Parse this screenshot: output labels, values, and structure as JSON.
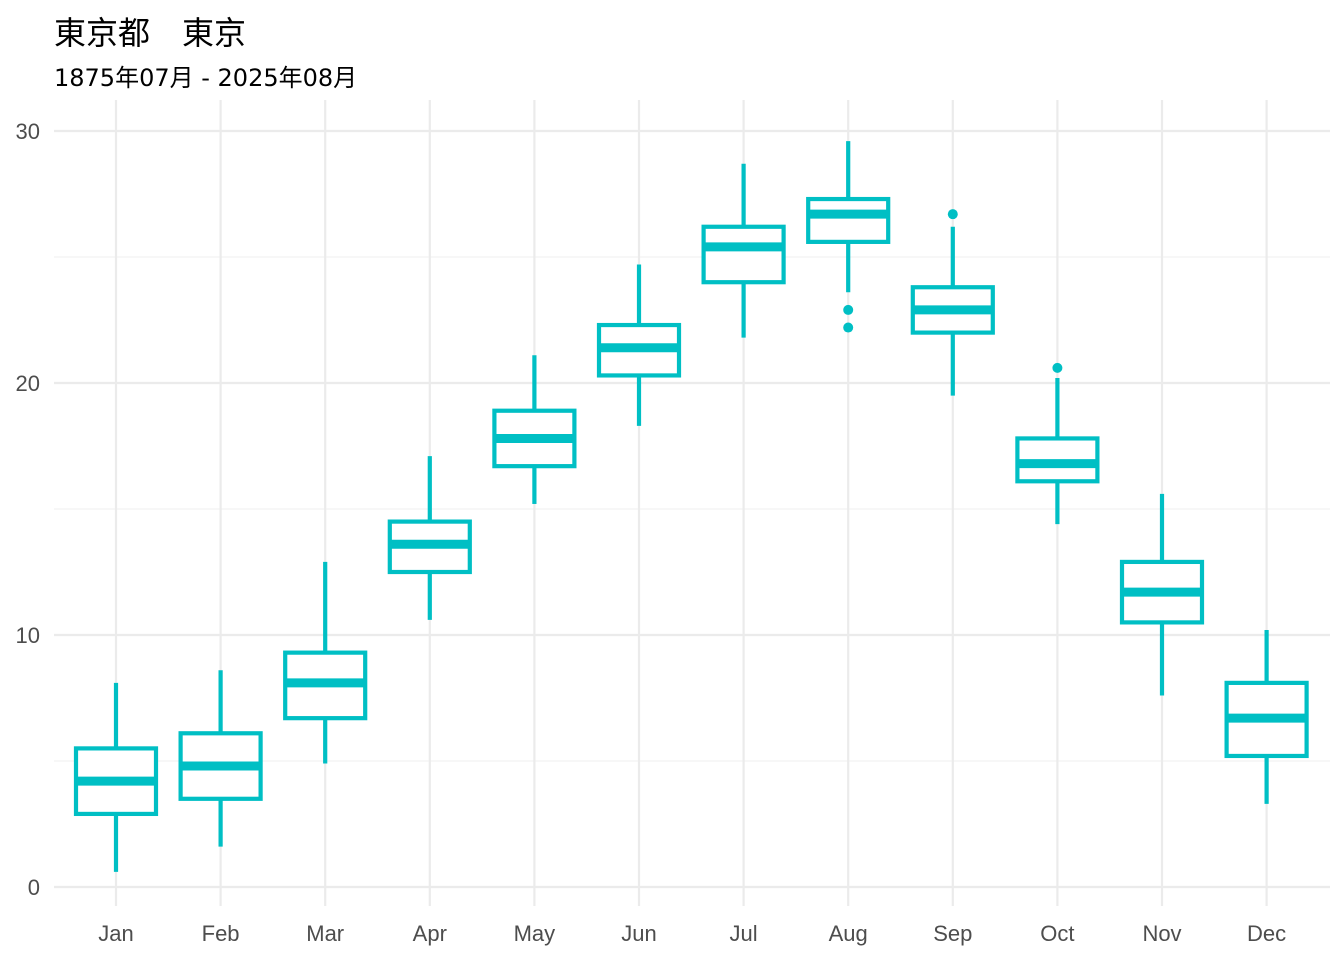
{
  "title": "東京都　東京",
  "subtitle": "1875年07月 - 2025年08月",
  "chart_data": {
    "type": "boxplot",
    "color": "#00BFC4",
    "grid": true,
    "ylim": [
      -0.5,
      31
    ],
    "yticks": [
      0,
      10,
      20,
      30
    ],
    "categories": [
      "Jan",
      "Feb",
      "Mar",
      "Apr",
      "May",
      "Jun",
      "Jul",
      "Aug",
      "Sep",
      "Oct",
      "Nov",
      "Dec"
    ],
    "boxes": [
      {
        "min": 0.6,
        "q1": 2.9,
        "median": 4.2,
        "q3": 5.5,
        "max": 8.1,
        "outliers": []
      },
      {
        "min": 1.6,
        "q1": 3.5,
        "median": 4.8,
        "q3": 6.1,
        "max": 8.6,
        "outliers": []
      },
      {
        "min": 4.9,
        "q1": 6.7,
        "median": 8.1,
        "q3": 9.3,
        "max": 12.9,
        "outliers": []
      },
      {
        "min": 10.6,
        "q1": 12.5,
        "median": 13.6,
        "q3": 14.5,
        "max": 17.1,
        "outliers": []
      },
      {
        "min": 15.2,
        "q1": 16.7,
        "median": 17.8,
        "q3": 18.9,
        "max": 21.1,
        "outliers": []
      },
      {
        "min": 18.3,
        "q1": 20.3,
        "median": 21.4,
        "q3": 22.3,
        "max": 24.7,
        "outliers": []
      },
      {
        "min": 21.8,
        "q1": 24.0,
        "median": 25.4,
        "q3": 26.2,
        "max": 28.7,
        "outliers": []
      },
      {
        "min": 23.6,
        "q1": 25.6,
        "median": 26.7,
        "q3": 27.3,
        "max": 29.6,
        "outliers": [
          22.2,
          22.9
        ]
      },
      {
        "min": 19.5,
        "q1": 22.0,
        "median": 22.9,
        "q3": 23.8,
        "max": 26.2,
        "outliers": [
          26.7
        ]
      },
      {
        "min": 14.4,
        "q1": 16.1,
        "median": 16.8,
        "q3": 17.8,
        "max": 20.2,
        "outliers": [
          20.6
        ]
      },
      {
        "min": 7.6,
        "q1": 10.5,
        "median": 11.7,
        "q3": 12.9,
        "max": 15.6,
        "outliers": []
      },
      {
        "min": 3.3,
        "q1": 5.2,
        "median": 6.7,
        "q3": 8.1,
        "max": 10.2,
        "outliers": []
      }
    ]
  }
}
